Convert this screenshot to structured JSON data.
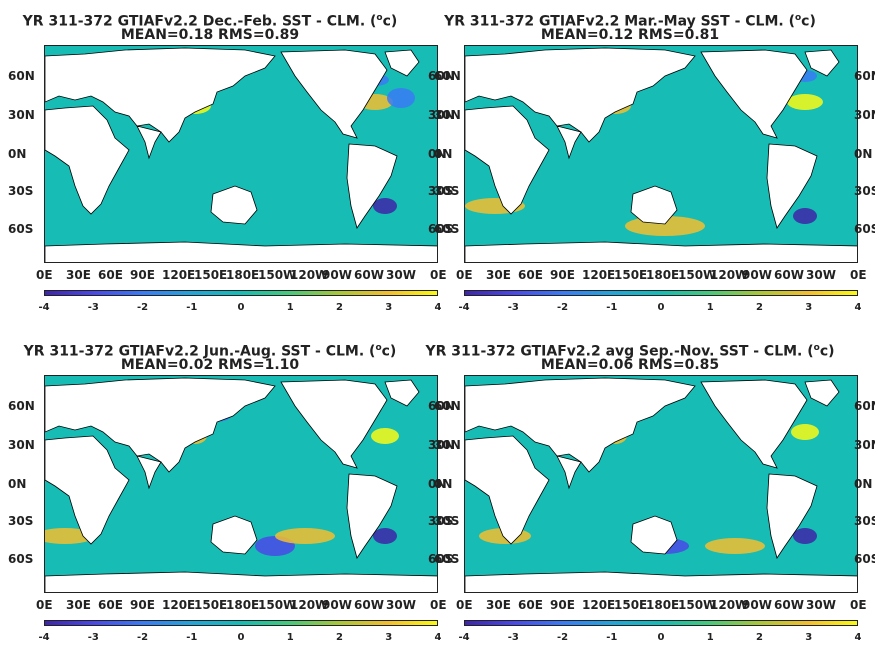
{
  "panels": [
    {
      "title_pre": "YR 311-372 GTIAFv2.2  Dec.-Feb. SST - CLM. (",
      "unit_sup": "o",
      "title_post": "c)",
      "stats": "MEAN=0.18   RMS=0.89"
    },
    {
      "title_pre": "YR 311-372 GTIAFv2.2 Mar.-May SST - CLM. (",
      "unit_sup": "o",
      "title_post": "c)",
      "stats": "MEAN=0.12   RMS=0.81"
    },
    {
      "title_pre": "YR 311-372 GTIAFv2.2 Jun.-Aug. SST - CLM. (",
      "unit_sup": "o",
      "title_post": "c)",
      "stats": "MEAN=0.02   RMS=1.10"
    },
    {
      "title_pre": "YR 311-372 GTIAFv2.2 avg Sep.-Nov. SST - CLM. (",
      "unit_sup": "o",
      "title_post": "c)",
      "stats": "MEAN=0.06   RMS=0.85"
    }
  ],
  "lat_labels": [
    "60N",
    "30N",
    "0N",
    "30S",
    "60S"
  ],
  "lon_labels": [
    "0E",
    "30E",
    "60E",
    "90E",
    "120E",
    "150E",
    "180E",
    "150W",
    "120W",
    "90W",
    "60W",
    "30W",
    "0E"
  ],
  "colorbar_labels": [
    "-4",
    "-3",
    "-2",
    "-1",
    "0",
    "1",
    "2",
    "3",
    "4"
  ],
  "colors": {
    "colormap": [
      "#3e26a8",
      "#4a49e6",
      "#3a7bf4",
      "#25a4d8",
      "#17bcb4",
      "#48c97a",
      "#a8c63a",
      "#f2be2e",
      "#f9fa14"
    ],
    "land": "#ffffff",
    "coast": "#000000"
  },
  "chart_data": [
    {
      "type": "heatmap",
      "title": "YR 311-372 GTIAFv2.2  Dec.-Feb. SST - CLM. (oc)",
      "subtitle": "MEAN=0.18   RMS=0.89",
      "x_ticks": [
        "0E",
        "30E",
        "60E",
        "90E",
        "120E",
        "150E",
        "180E",
        "150W",
        "120W",
        "90W",
        "60W",
        "30W",
        "0E"
      ],
      "y_ticks": [
        "60N",
        "30N",
        "0N",
        "30S",
        "60S"
      ],
      "colorbar_range": [
        -4,
        4
      ],
      "mean": 0.18,
      "rms": 0.89
    },
    {
      "type": "heatmap",
      "title": "YR 311-372 GTIAFv2.2 Mar.-May SST - CLM. (oc)",
      "subtitle": "MEAN=0.12   RMS=0.81",
      "x_ticks": [
        "0E",
        "30E",
        "60E",
        "90E",
        "120E",
        "150E",
        "180E",
        "150W",
        "120W",
        "90W",
        "60W",
        "30W",
        "0E"
      ],
      "y_ticks": [
        "60N",
        "30N",
        "0N",
        "30S",
        "60S"
      ],
      "colorbar_range": [
        -4,
        4
      ],
      "mean": 0.12,
      "rms": 0.81
    },
    {
      "type": "heatmap",
      "title": "YR 311-372 GTIAFv2.2 Jun.-Aug. SST - CLM. (oc)",
      "subtitle": "MEAN=0.02   RMS=1.10",
      "x_ticks": [
        "0E",
        "30E",
        "60E",
        "90E",
        "120E",
        "150E",
        "180E",
        "150W",
        "120W",
        "90W",
        "60W",
        "30W",
        "0E"
      ],
      "y_ticks": [
        "60N",
        "30N",
        "0N",
        "30S",
        "60S"
      ],
      "colorbar_range": [
        -4,
        4
      ],
      "mean": 0.02,
      "rms": 1.1
    },
    {
      "type": "heatmap",
      "title": "YR 311-372 GTIAFv2.2 avg Sep.-Nov. SST - CLM. (oc)",
      "subtitle": "MEAN=0.06   RMS=0.85",
      "x_ticks": [
        "0E",
        "30E",
        "60E",
        "90E",
        "120E",
        "150E",
        "180E",
        "150W",
        "120W",
        "90W",
        "60W",
        "30W",
        "0E"
      ],
      "y_ticks": [
        "60N",
        "30N",
        "0N",
        "30S",
        "60S"
      ],
      "colorbar_range": [
        -4,
        4
      ],
      "mean": 0.06,
      "rms": 0.85
    }
  ]
}
